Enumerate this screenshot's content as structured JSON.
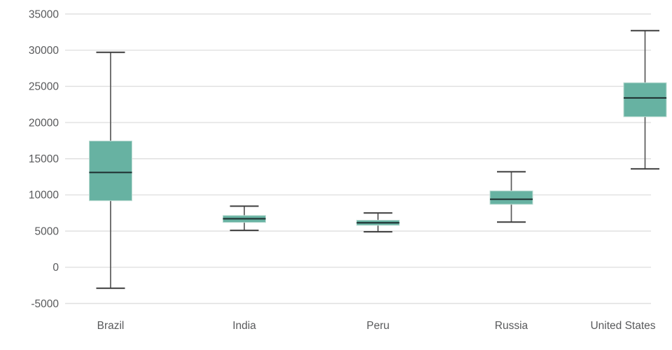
{
  "chart_data": {
    "type": "boxplot",
    "title": "",
    "categories": [
      "Brazil",
      "India",
      "Peru",
      "Russia",
      "United States"
    ],
    "values": [
      {
        "category": "Brazil",
        "min": -2900,
        "q1": 9200,
        "median": 13100,
        "q3": 17450,
        "max": 29700
      },
      {
        "category": "India",
        "min": 5100,
        "q1": 6200,
        "median": 6700,
        "q3": 7150,
        "max": 8450
      },
      {
        "category": "Peru",
        "min": 4900,
        "q1": 5800,
        "median": 6150,
        "q3": 6500,
        "max": 7500
      },
      {
        "category": "Russia",
        "min": 6250,
        "q1": 8700,
        "median": 9400,
        "q3": 10550,
        "max": 13200
      },
      {
        "category": "United States",
        "min": 13600,
        "q1": 20800,
        "median": 23400,
        "q3": 25500,
        "max": 32700
      }
    ],
    "ylim": [
      -5000,
      35000
    ],
    "ytick_step": 5000,
    "ytick_labels": [
      "35000",
      "30000",
      "25000",
      "20000",
      "15000",
      "10000",
      "5000",
      "0",
      "-5000"
    ],
    "xlabel": "",
    "ylabel": "",
    "grid": true,
    "legend": false,
    "colors": {
      "box_fill": "#67b2a2",
      "box_stroke": "#bcdcd3",
      "median_line": "#1d2d2e",
      "whisker_stem": "#5a5a5a",
      "whisker_cap": "#3d3d3d",
      "gridline": "#e0e0e0",
      "tick_text": "#58595b",
      "background": "#ffffff"
    }
  }
}
